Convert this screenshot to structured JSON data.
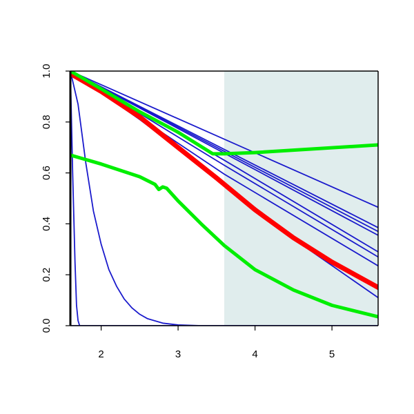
{
  "chart_data": {
    "type": "line",
    "title": "",
    "xlabel": "",
    "ylabel": "",
    "xlim": [
      1.6,
      5.6
    ],
    "ylim": [
      0,
      1
    ],
    "x_ticks": [
      2,
      3,
      4,
      5
    ],
    "x_tick_labels": [
      "2",
      "3",
      "4",
      "5"
    ],
    "y_ticks": [
      0,
      0.2,
      0.4,
      0.6,
      0.8,
      1
    ],
    "y_tick_labels": [
      "0.0",
      "0.2",
      "0.4",
      "0.6",
      "0.8",
      "1.0"
    ],
    "grid": false,
    "legend": "none",
    "shaded_region": {
      "x_start": 3.6,
      "x_end": 5.6,
      "color": "#e0eded"
    },
    "series": [
      {
        "color": "#1a1acc",
        "width": 1.8,
        "points": [
          [
            1.6,
            1
          ],
          [
            5.6,
            0.465
          ]
        ]
      },
      {
        "color": "#1a1acc",
        "width": 1.8,
        "points": [
          [
            1.6,
            1
          ],
          [
            5.6,
            0.385
          ]
        ]
      },
      {
        "color": "#1a1acc",
        "width": 1.8,
        "points": [
          [
            1.6,
            1
          ],
          [
            5.6,
            0.37
          ]
        ]
      },
      {
        "color": "#1a1acc",
        "width": 1.8,
        "points": [
          [
            1.6,
            1
          ],
          [
            5.6,
            0.355
          ]
        ]
      },
      {
        "color": "#1a1acc",
        "width": 1.8,
        "points": [
          [
            1.6,
            1
          ],
          [
            3.6,
            0.65
          ],
          [
            5.6,
            0.29
          ]
        ]
      },
      {
        "color": "#1a1acc",
        "width": 1.8,
        "points": [
          [
            1.6,
            1
          ],
          [
            3.6,
            0.63
          ],
          [
            5.6,
            0.27
          ]
        ]
      },
      {
        "color": "#1a1acc",
        "width": 1.8,
        "points": [
          [
            1.6,
            1
          ],
          [
            3.6,
            0.595
          ],
          [
            5.6,
            0.235
          ]
        ]
      },
      {
        "color": "#1a1acc",
        "width": 1.8,
        "points": [
          [
            1.6,
            1
          ],
          [
            2.5,
            0.81
          ],
          [
            3.6,
            0.56
          ],
          [
            4.6,
            0.32
          ],
          [
            5.6,
            0.11
          ]
        ]
      },
      {
        "color": "#1a1acc",
        "width": 1.8,
        "points": [
          [
            1.6,
            1
          ],
          [
            1.63,
            0.6
          ],
          [
            1.66,
            0.25
          ],
          [
            1.68,
            0.08
          ],
          [
            1.7,
            0.02
          ],
          [
            1.72,
            0
          ],
          [
            5.6,
            0
          ]
        ]
      },
      {
        "color": "#1a1acc",
        "width": 1.8,
        "points": [
          [
            1.6,
            1
          ],
          [
            1.7,
            0.87
          ],
          [
            1.8,
            0.64
          ],
          [
            1.9,
            0.45
          ],
          [
            2,
            0.32
          ],
          [
            2.1,
            0.22
          ],
          [
            2.2,
            0.155
          ],
          [
            2.3,
            0.105
          ],
          [
            2.4,
            0.07
          ],
          [
            2.5,
            0.045
          ],
          [
            2.6,
            0.028
          ],
          [
            2.8,
            0.01
          ],
          [
            3,
            0.003
          ],
          [
            3.3,
            0
          ],
          [
            5.6,
            0
          ]
        ]
      },
      {
        "color": "#1a1acc",
        "width": 1.8,
        "points": [
          [
            1.6,
            0
          ],
          [
            5.6,
            0
          ]
        ]
      },
      {
        "color": "#ff0000",
        "width": 7,
        "points": [
          [
            1.6,
            0.99
          ],
          [
            2,
            0.92
          ],
          [
            2.5,
            0.82
          ],
          [
            3,
            0.7
          ],
          [
            3.5,
            0.58
          ],
          [
            4,
            0.455
          ],
          [
            4.5,
            0.345
          ],
          [
            5,
            0.25
          ],
          [
            5.6,
            0.15
          ]
        ]
      },
      {
        "color": "#00ee00",
        "width": 5,
        "points": [
          [
            1.6,
            1
          ],
          [
            2,
            0.93
          ],
          [
            2.5,
            0.84
          ],
          [
            3,
            0.76
          ],
          [
            3.45,
            0.675
          ],
          [
            3.6,
            0.675
          ],
          [
            4,
            0.68
          ],
          [
            5.6,
            0.71
          ]
        ]
      },
      {
        "color": "#00ee00",
        "width": 5,
        "points": [
          [
            1.6,
            0.67
          ],
          [
            2,
            0.635
          ],
          [
            2.5,
            0.585
          ],
          [
            2.7,
            0.555
          ],
          [
            2.75,
            0.535
          ],
          [
            2.8,
            0.545
          ],
          [
            2.85,
            0.54
          ],
          [
            3,
            0.49
          ],
          [
            3.3,
            0.4
          ],
          [
            3.6,
            0.315
          ],
          [
            4,
            0.22
          ],
          [
            4.5,
            0.14
          ],
          [
            5,
            0.08
          ],
          [
            5.6,
            0.035
          ]
        ]
      }
    ]
  }
}
